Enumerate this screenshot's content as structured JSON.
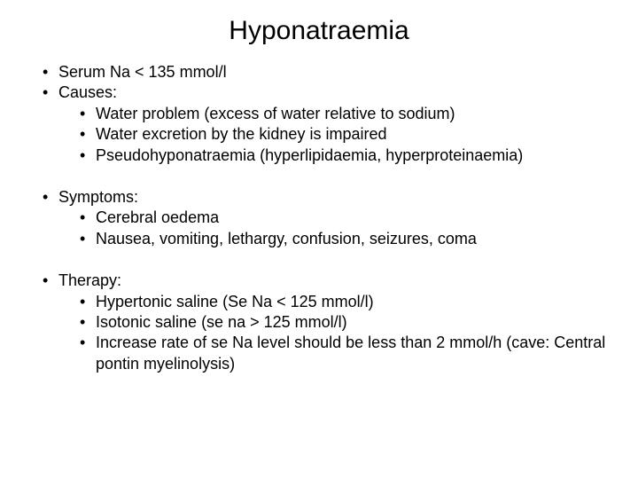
{
  "title": "Hyponatraemia",
  "text_color": "#000000",
  "background_color": "#ffffff",
  "title_fontsize": 30,
  "body_fontsize": 18,
  "font_family": "Arial",
  "sections": [
    {
      "items": [
        {
          "text": "Serum Na < 135 mmol/l"
        },
        {
          "text": "Causes:",
          "sub": [
            "Water problem (excess of water relative to sodium)",
            "Water excretion by the kidney is impaired",
            "Pseudohyponatraemia (hyperlipidaemia, hyperproteinaemia)"
          ]
        }
      ]
    },
    {
      "items": [
        {
          "text": "Symptoms:",
          "sub": [
            "Cerebral oedema",
            "Nausea, vomiting, lethargy, confusion, seizures, coma"
          ]
        }
      ]
    },
    {
      "items": [
        {
          "text": "Therapy:",
          "sub": [
            "Hypertonic saline (Se Na < 125 mmol/l)",
            "Isotonic saline (se na > 125 mmol/l)",
            "Increase rate of se Na level should be less than 2 mmol/h (cave: Central pontin myelinolysis)"
          ]
        }
      ]
    }
  ]
}
